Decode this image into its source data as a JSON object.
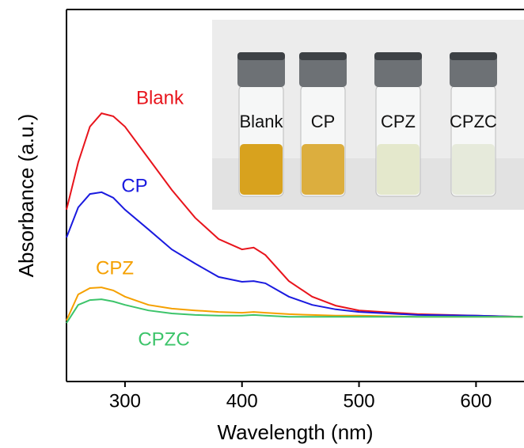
{
  "chart_data": {
    "type": "line",
    "xlabel": "Wavelength (nm)",
    "ylabel": "Absorbance (a.u.)",
    "x": [
      250,
      260,
      270,
      280,
      290,
      300,
      320,
      340,
      360,
      380,
      400,
      410,
      420,
      440,
      460,
      480,
      500,
      550,
      600,
      640
    ],
    "xlim": [
      250,
      641
    ],
    "xticks": [
      300,
      400,
      500,
      600
    ],
    "ylim": [
      0,
      1
    ],
    "series": [
      {
        "name": "Blank",
        "color": "#e8141c",
        "values": [
          0.462,
          0.589,
          0.685,
          0.721,
          0.713,
          0.685,
          0.6,
          0.515,
          0.44,
          0.383,
          0.355,
          0.36,
          0.34,
          0.27,
          0.228,
          0.204,
          0.191,
          0.181,
          0.177,
          0.174
        ]
      },
      {
        "name": "CP",
        "color": "#1a1adf",
        "values": [
          0.387,
          0.468,
          0.504,
          0.509,
          0.494,
          0.462,
          0.409,
          0.355,
          0.317,
          0.281,
          0.268,
          0.27,
          0.264,
          0.228,
          0.206,
          0.194,
          0.187,
          0.179,
          0.177,
          0.174
        ]
      },
      {
        "name": "CPZ",
        "color": "#f5a000",
        "values": [
          0.164,
          0.234,
          0.251,
          0.253,
          0.245,
          0.228,
          0.206,
          0.196,
          0.191,
          0.187,
          0.185,
          0.187,
          0.185,
          0.181,
          0.179,
          0.177,
          0.177,
          0.174,
          0.174,
          0.174
        ]
      },
      {
        "name": "CPZC",
        "color": "#3cc46a",
        "values": [
          0.157,
          0.206,
          0.219,
          0.221,
          0.215,
          0.206,
          0.191,
          0.183,
          0.179,
          0.177,
          0.177,
          0.179,
          0.177,
          0.174,
          0.174,
          0.174,
          0.174,
          0.174,
          0.174,
          0.174
        ]
      }
    ],
    "inset_labels": [
      "Blank",
      "CP",
      "CPZ",
      "CPZC"
    ]
  }
}
